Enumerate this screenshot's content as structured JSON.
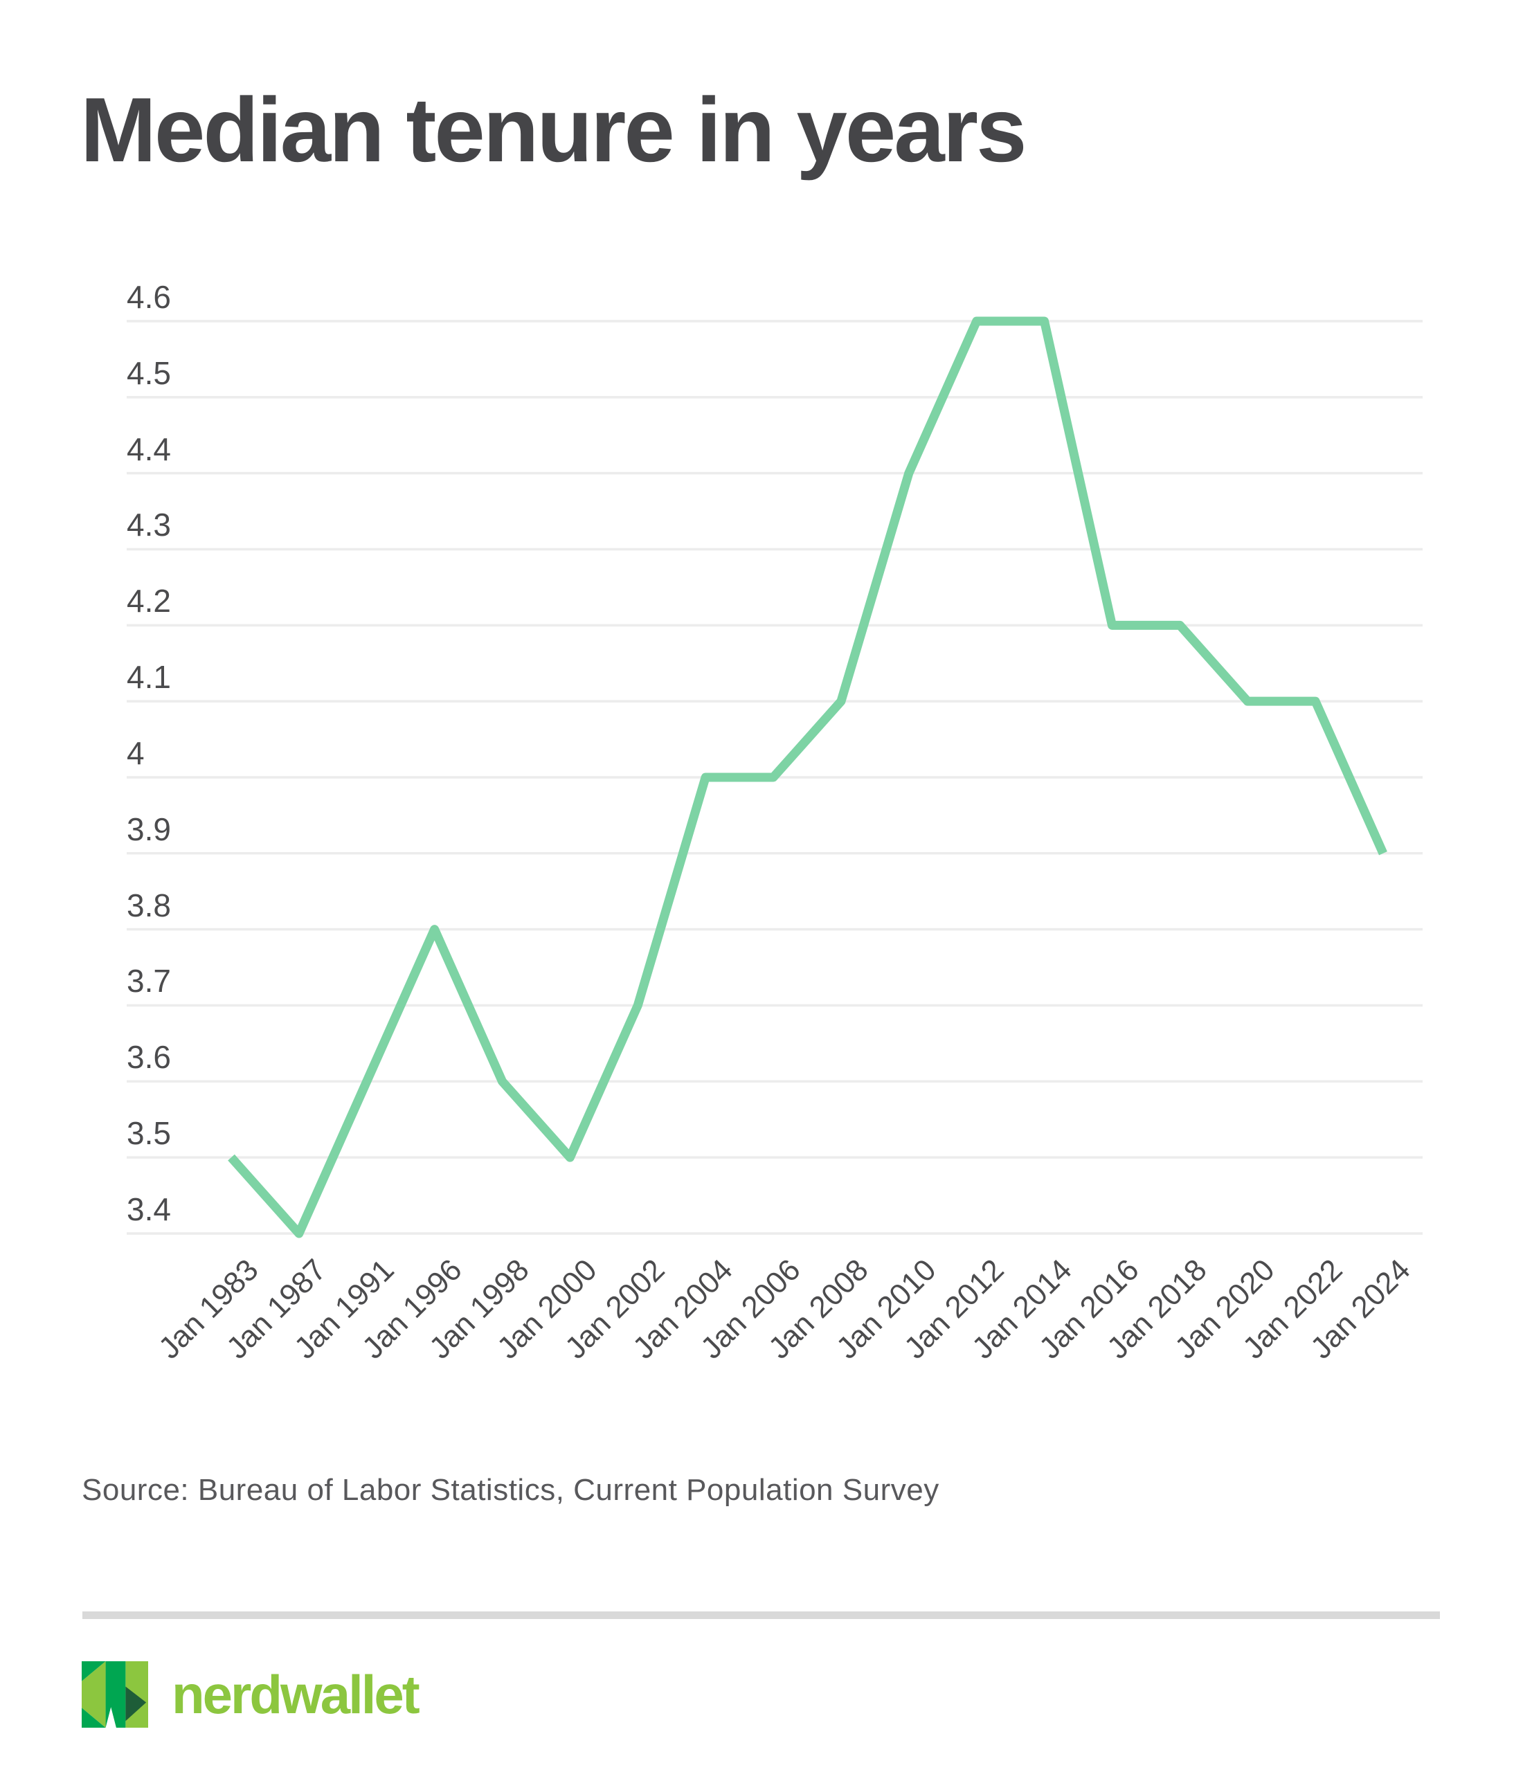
{
  "chart_data": {
    "type": "line",
    "title": "Median tenure in years",
    "categories": [
      "Jan 1983",
      "Jan 1987",
      "Jan 1991",
      "Jan 1996",
      "Jan 1998",
      "Jan 2000",
      "Jan 2002",
      "Jan 2004",
      "Jan 2006",
      "Jan 2008",
      "Jan 2010",
      "Jan 2012",
      "Jan 2014",
      "Jan 2016",
      "Jan 2018",
      "Jan 2020",
      "Jan 2022",
      "Jan 2024"
    ],
    "values": [
      3.5,
      3.4,
      3.6,
      3.8,
      3.6,
      3.5,
      3.7,
      4.0,
      4.0,
      4.1,
      4.4,
      4.6,
      4.6,
      4.2,
      4.2,
      4.1,
      4.1,
      3.9
    ],
    "xlabel": "",
    "ylabel": "",
    "ylim": [
      3.4,
      4.6
    ],
    "y_tick_step": 0.1,
    "y_tick_labels": [
      "4.6",
      "4.5",
      "4.4",
      "4.3",
      "4.2",
      "4.1",
      "4",
      "3.9",
      "3.8",
      "3.7",
      "3.6",
      "3.5",
      "3.4"
    ],
    "grid": "horizontal",
    "legend": "none",
    "line_color": "#7dd3a4",
    "grid_color": "#ececec"
  },
  "source_note": "Source: Bureau of Labor Statistics, Current Population Survey",
  "logo": {
    "wordmark": "nerdwallet",
    "wordmark_color": "#8cc63f",
    "mark_colors": {
      "kelly_green": "#00a651",
      "lime_green": "#8cc63f",
      "dark_green": "#1e5d38"
    }
  }
}
